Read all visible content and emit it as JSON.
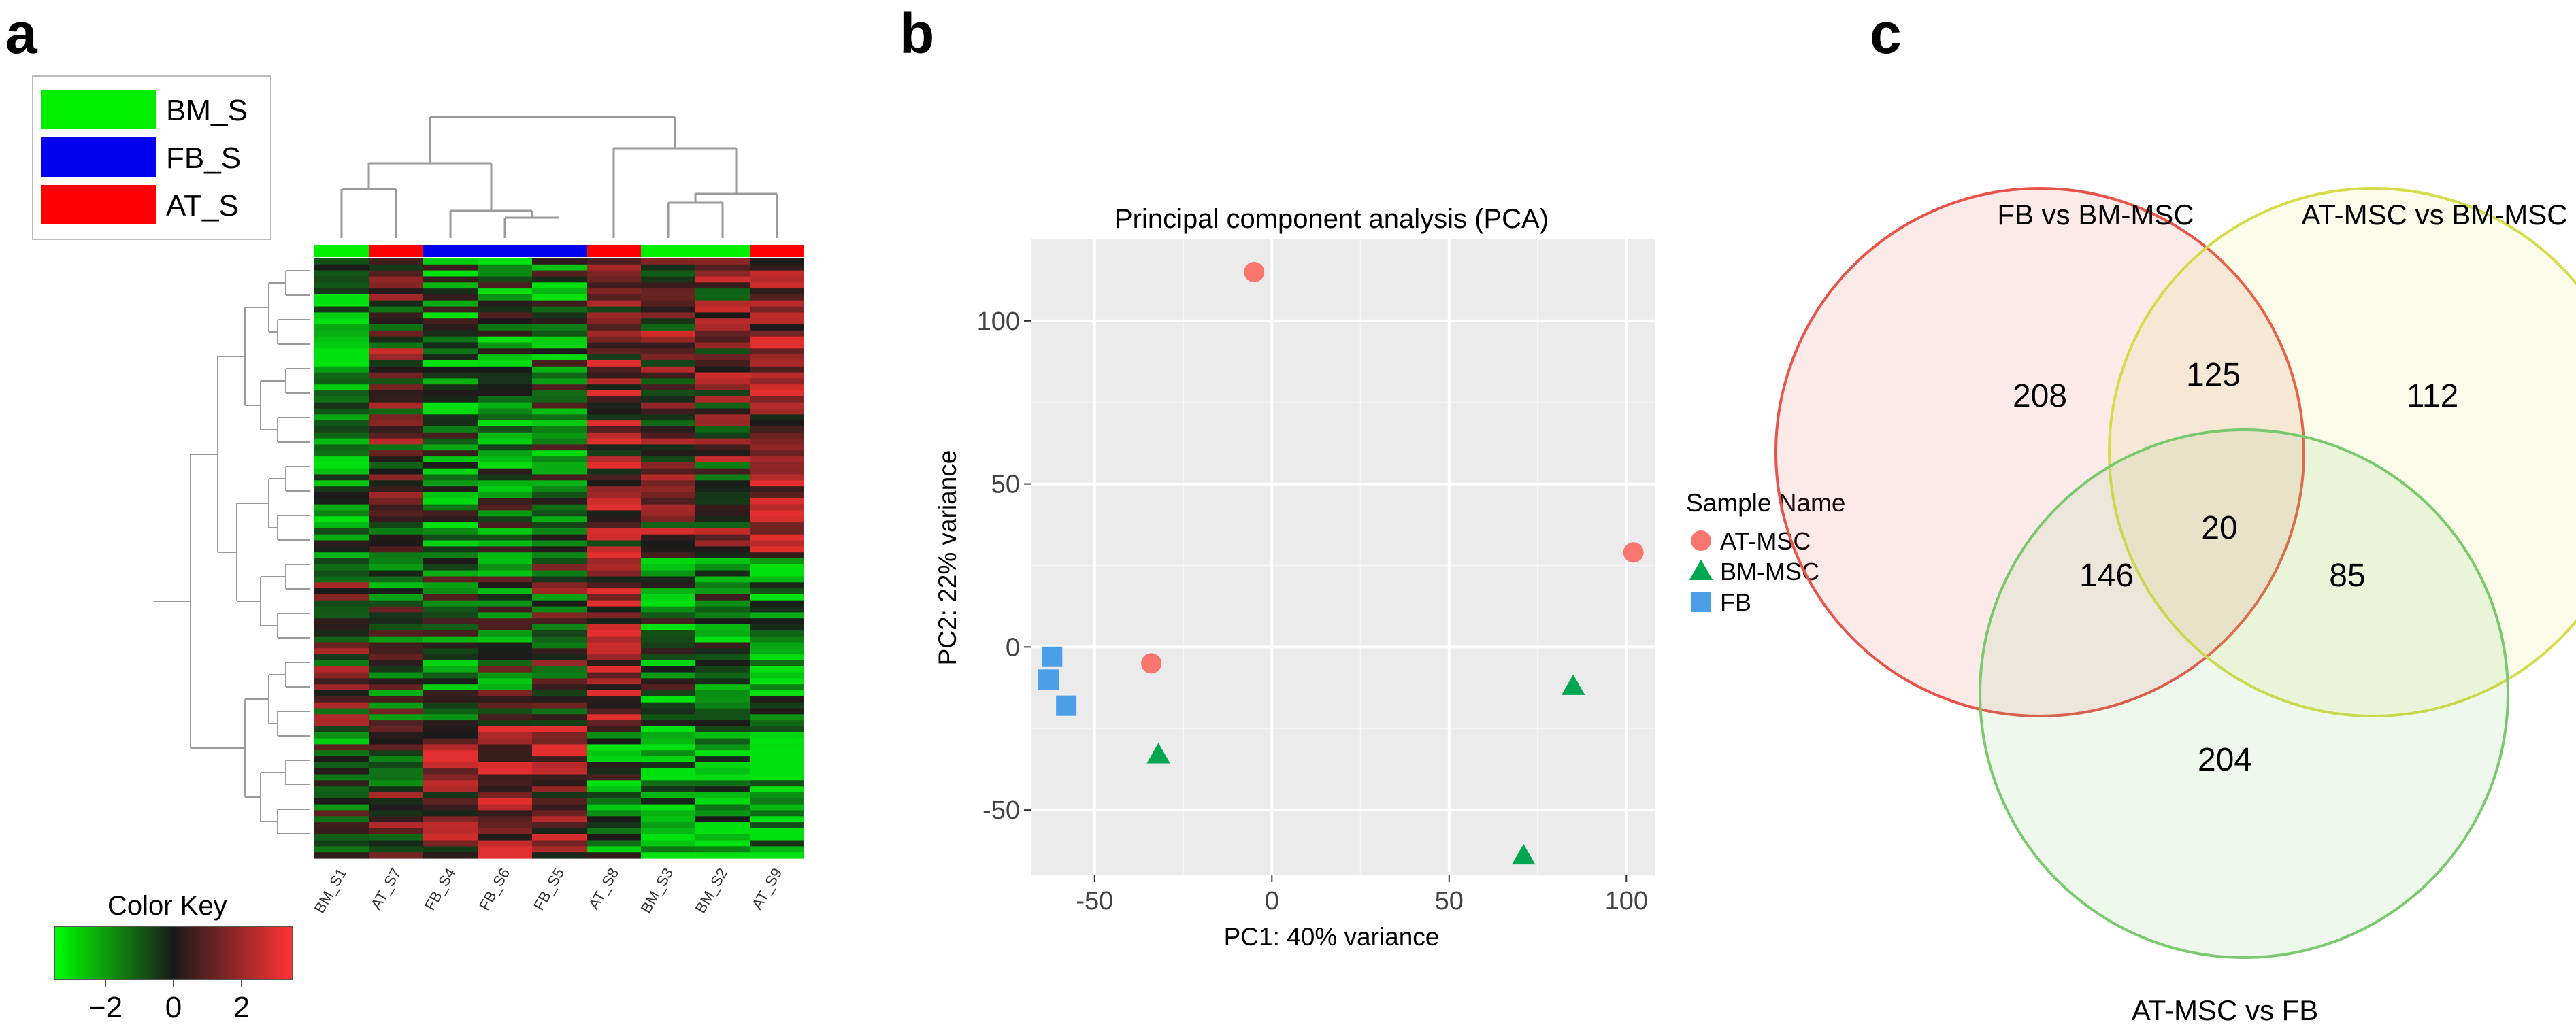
{
  "panels": {
    "a": "a",
    "b": "b",
    "c": "c"
  },
  "chart_data": [
    {
      "type": "heatmap",
      "panel": "a",
      "legend": [
        {
          "label": "BM_S",
          "color": "#00ee00"
        },
        {
          "label": "FB_S",
          "color": "#0000ee"
        },
        {
          "label": "AT_S",
          "color": "#ff0000"
        }
      ],
      "samples": [
        {
          "name": "BM_S1",
          "group": "BM_S"
        },
        {
          "name": "AT_S7",
          "group": "AT_S"
        },
        {
          "name": "FB_S4",
          "group": "FB_S"
        },
        {
          "name": "FB_S6",
          "group": "FB_S"
        },
        {
          "name": "FB_S5",
          "group": "FB_S"
        },
        {
          "name": "AT_S8",
          "group": "AT_S"
        },
        {
          "name": "BM_S3",
          "group": "BM_S"
        },
        {
          "name": "BM_S2",
          "group": "BM_S"
        },
        {
          "name": "AT_S9",
          "group": "AT_S"
        }
      ],
      "color_key": {
        "title": "Color Key",
        "ticks": [
          -2,
          0,
          2
        ],
        "tick_labels": [
          "−2",
          "0",
          "2"
        ],
        "range": [
          -3.5,
          3.5
        ],
        "low_color": "#00ff00",
        "mid_color": "#1a1a1a",
        "high_color": "#ff3333"
      },
      "row_count": 100
    },
    {
      "type": "scatter",
      "panel": "b",
      "title": "Principal component analysis (PCA)",
      "xlabel": "PC1: 40% variance",
      "ylabel": "PC2: 22% variance",
      "xlim": [
        -68,
        108
      ],
      "ylim": [
        -70,
        125
      ],
      "xticks": [
        -50,
        0,
        50,
        100
      ],
      "yticks": [
        -50,
        0,
        50,
        100
      ],
      "legend_title": "Sample Name",
      "series": [
        {
          "name": "AT-MSC",
          "marker": "circle",
          "color": "#f8766d",
          "points": [
            [
              -5,
              115
            ],
            [
              102,
              29
            ],
            [
              -34,
              -5
            ]
          ]
        },
        {
          "name": "BM-MSC",
          "marker": "triangle",
          "color": "#00a651",
          "points": [
            [
              85,
              -12
            ],
            [
              -32,
              -33
            ],
            [
              71,
              -64
            ]
          ]
        },
        {
          "name": "FB",
          "marker": "square",
          "color": "#4b9ee8",
          "points": [
            [
              -62,
              -3
            ],
            [
              -63,
              -10
            ],
            [
              -58,
              -18
            ]
          ]
        }
      ]
    },
    {
      "type": "venn",
      "panel": "c",
      "sets": [
        {
          "name": "FB vs BM-MSC",
          "color": "#e8534a"
        },
        {
          "name": "AT-MSC vs BM-MSC",
          "color": "#d4dc4a"
        },
        {
          "name": "AT-MSC vs FB",
          "color": "#7bc96f"
        }
      ],
      "regions": {
        "only_1": 208,
        "only_2": 112,
        "only_3": 204,
        "1_2": 125,
        "1_3": 146,
        "2_3": 85,
        "1_2_3": 20
      }
    }
  ]
}
